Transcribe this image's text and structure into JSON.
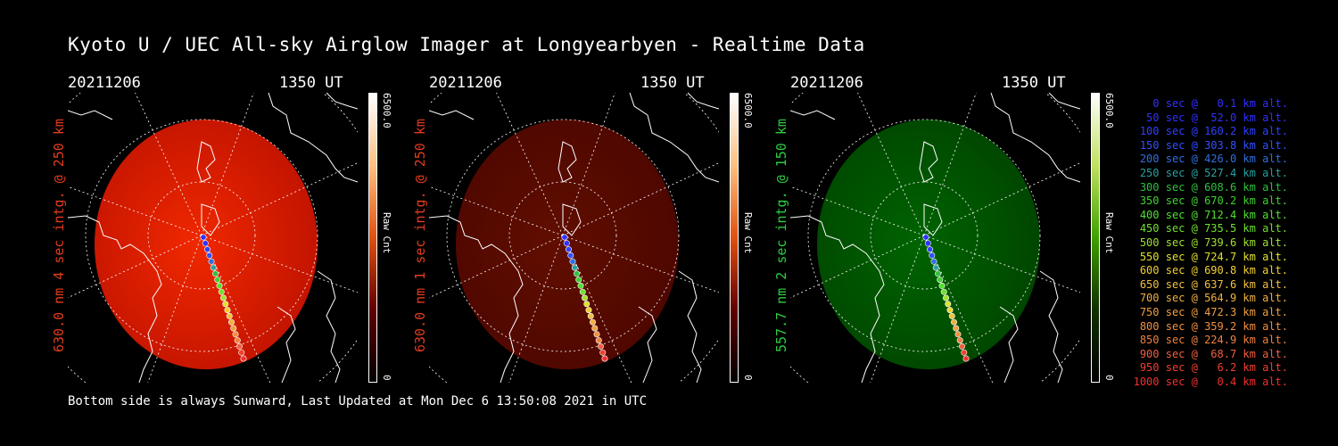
{
  "title": "Kyoto U / UEC All-sky Airglow Imager at Longyearbyen - Realtime Data",
  "panels": [
    {
      "date": "20211206",
      "time": "1350 UT",
      "label": "630.0 nm 4 sec intg. @ 250 km",
      "label_color": "#e03c1e",
      "cbar_top": "6500.0",
      "cbar_bottom": "0",
      "cbar_title": "Raw Cnt",
      "tint": "red",
      "intensity": 1.0
    },
    {
      "date": "20211206",
      "time": "1350 UT",
      "label": "630.0 nm 1 sec intg. @ 250 km",
      "label_color": "#e03c1e",
      "cbar_top": "6500.0",
      "cbar_bottom": "0",
      "cbar_title": "Raw Cnt",
      "tint": "red",
      "intensity": 0.35
    },
    {
      "date": "20211206",
      "time": "1350 UT",
      "label": "557.7 nm 2 sec intg. @ 150 km",
      "label_color": "#2ecc40",
      "cbar_top": "6500.0",
      "cbar_bottom": "0",
      "cbar_title": "Raw Cnt",
      "tint": "green",
      "intensity": 0.4
    }
  ],
  "legend": [
    {
      "text": "0 sec @   0.1 km alt.",
      "color": "#3030ff"
    },
    {
      "text": "50 sec @  52.0 km alt.",
      "color": "#3030ff"
    },
    {
      "text": "100 sec @ 160.2 km alt.",
      "color": "#3040ff"
    },
    {
      "text": "150 sec @ 303.8 km alt.",
      "color": "#3050ff"
    },
    {
      "text": "200 sec @ 426.0 km alt.",
      "color": "#3070e0"
    },
    {
      "text": "250 sec @ 527.4 km alt.",
      "color": "#2aa0a0"
    },
    {
      "text": "300 sec @ 608.6 km alt.",
      "color": "#30c040"
    },
    {
      "text": "350 sec @ 670.2 km alt.",
      "color": "#40d030"
    },
    {
      "text": "400 sec @ 712.4 km alt.",
      "color": "#50e030"
    },
    {
      "text": "450 sec @ 735.5 km alt.",
      "color": "#70e030"
    },
    {
      "text": "500 sec @ 739.6 km alt.",
      "color": "#a0e030"
    },
    {
      "text": "550 sec @ 724.7 km alt.",
      "color": "#e0e030"
    },
    {
      "text": "600 sec @ 690.8 km alt.",
      "color": "#f0d030"
    },
    {
      "text": "650 sec @ 637.6 km alt.",
      "color": "#f0c040"
    },
    {
      "text": "700 sec @ 564.9 km alt.",
      "color": "#f0b040"
    },
    {
      "text": "750 sec @ 472.3 km alt.",
      "color": "#f0a040"
    },
    {
      "text": "800 sec @ 359.2 km alt.",
      "color": "#f09040"
    },
    {
      "text": "850 sec @ 224.9 km alt.",
      "color": "#f08040"
    },
    {
      "text": "900 sec @  68.7 km alt.",
      "color": "#f06040"
    },
    {
      "text": "950 sec @   6.2 km alt.",
      "color": "#f04030"
    },
    {
      "text": "1000 sec @   0.4 km alt.",
      "color": "#f03030"
    }
  ],
  "footer": "Bottom side is always Sunward, Last Updated at Mon Dec  6 13:50:08 2021 in UTC"
}
